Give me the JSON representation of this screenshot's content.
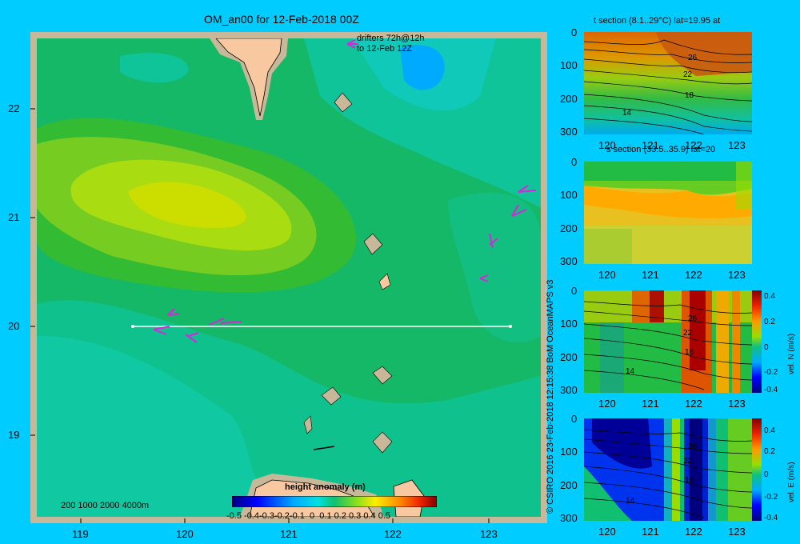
{
  "map": {
    "title": "OM_an00 for 12-Feb-2018 00Z",
    "drifter_note_line1": "drifters 72h@12h",
    "drifter_note_line2": "to 12-Feb 12Z",
    "lat_ticks": [
      "22",
      "21",
      "20",
      "19"
    ],
    "lon_ticks": [
      "119",
      "120",
      "121",
      "122",
      "123"
    ],
    "depth_legend": "200  1000  2000  4000m",
    "colorbar_title": "height anomaly (m)",
    "colorbar_ticks": [
      "-0.5",
      "-0.4",
      "-0.3",
      "-0.2",
      "-0.1",
      "0",
      "0.1",
      "0.2",
      "0.3",
      "0.4",
      "0.5"
    ],
    "section_line_lat": 20,
    "section_line_lon": [
      119.5,
      123.2
    ],
    "colors": {
      "page_bg": "#00ccff",
      "map_frame": "#c8b89a",
      "land": "#f8c8a0",
      "section_line": "#ffffff",
      "drifter": "#dd22dd"
    }
  },
  "credit": "© CSIRO 2016   23-Feb-2018 12:15:38 BoM OceanMAPS v3",
  "panels": [
    {
      "title": "t section (8.1..29°C) lat=19.95 at",
      "y_ticks": [
        "0",
        "100",
        "200",
        "300"
      ],
      "x_ticks": [
        "120",
        "121",
        "122",
        "123"
      ],
      "contour_labels": [
        "26",
        "22",
        "18",
        "14"
      ],
      "colorbar": false
    },
    {
      "title": "s section (33.5..35.9) lat=20",
      "y_ticks": [
        "0",
        "100",
        "200",
        "300"
      ],
      "x_ticks": [
        "120",
        "121",
        "122",
        "123"
      ],
      "contour_labels": [],
      "colorbar": false
    },
    {
      "title": "",
      "y_ticks": [
        "0",
        "100",
        "200",
        "300"
      ],
      "x_ticks": [
        "120",
        "121",
        "122",
        "123"
      ],
      "contour_labels": [
        "26",
        "22",
        "18",
        "14"
      ],
      "colorbar": true,
      "colorbar_label": "vel. N (m/s)",
      "colorbar_ticks": [
        "0.4",
        "0.2",
        "0",
        "-0.2",
        "-0.4"
      ]
    },
    {
      "title": "",
      "y_ticks": [
        "0",
        "100",
        "200",
        "300"
      ],
      "x_ticks": [
        "120",
        "121",
        "122",
        "123"
      ],
      "contour_labels": [
        "26",
        "22",
        "18",
        "14"
      ],
      "colorbar": true,
      "colorbar_label": "vel. E (m/s)",
      "colorbar_ticks": [
        "0.4",
        "0.2",
        "0",
        "-0.2",
        "-0.4"
      ]
    }
  ]
}
